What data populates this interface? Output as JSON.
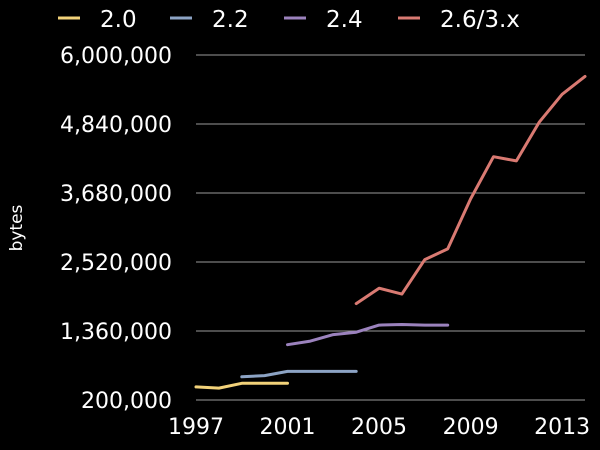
{
  "chart_data": {
    "type": "line",
    "title": "",
    "xlabel": "",
    "ylabel": "bytes",
    "xlim": [
      1997,
      2014
    ],
    "ylim": [
      200000,
      6000000
    ],
    "xticks": [
      1997,
      2001,
      2005,
      2009,
      2013
    ],
    "yticks": [
      "6,000,000",
      "4,840,000",
      "3,680,000",
      "2,520,000",
      "1,360,000",
      "200,000"
    ],
    "ytick_values": [
      6000000,
      4840000,
      3680000,
      2520000,
      1360000,
      200000
    ],
    "grid": "horizontal",
    "legend_position": "top",
    "series": [
      {
        "name": "2.0",
        "color": "#f2d27a",
        "points": [
          [
            1997,
            420000
          ],
          [
            1998,
            400000
          ],
          [
            1999,
            480000
          ],
          [
            2000,
            480000
          ],
          [
            2001,
            480000
          ]
        ]
      },
      {
        "name": "2.2",
        "color": "#8ca3c4",
        "points": [
          [
            1999,
            590000
          ],
          [
            2000,
            610000
          ],
          [
            2001,
            680000
          ],
          [
            2002,
            680000
          ],
          [
            2003,
            680000
          ],
          [
            2004,
            680000
          ]
        ]
      },
      {
        "name": "2.4",
        "color": "#9b82bd",
        "points": [
          [
            2001,
            1130000
          ],
          [
            2002,
            1190000
          ],
          [
            2003,
            1300000
          ],
          [
            2004,
            1340000
          ],
          [
            2005,
            1460000
          ],
          [
            2006,
            1470000
          ],
          [
            2007,
            1460000
          ],
          [
            2008,
            1460000
          ]
        ]
      },
      {
        "name": "2.6/3.x",
        "color": "#d97a72",
        "points": [
          [
            2004,
            1820000
          ],
          [
            2005,
            2080000
          ],
          [
            2006,
            1980000
          ],
          [
            2007,
            2560000
          ],
          [
            2008,
            2740000
          ],
          [
            2009,
            3580000
          ],
          [
            2010,
            4290000
          ],
          [
            2011,
            4220000
          ],
          [
            2012,
            4870000
          ],
          [
            2013,
            5340000
          ],
          [
            2014,
            5640000
          ]
        ]
      }
    ]
  }
}
